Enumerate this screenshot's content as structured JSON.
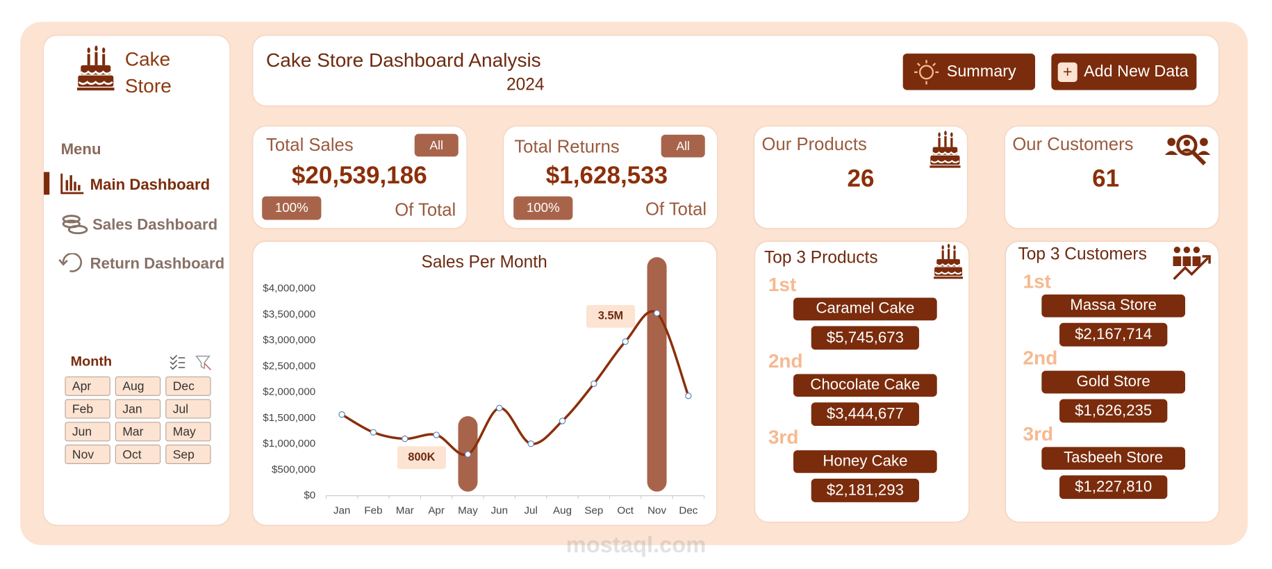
{
  "sidebar": {
    "brand": [
      "Cake",
      "Store"
    ],
    "menu_title": "Menu",
    "menu": [
      "Main Dashboard",
      "Sales Dashboard",
      "Return Dashboard"
    ],
    "month_filter": {
      "title": "Month",
      "items": [
        "Apr",
        "Aug",
        "Dec",
        "Feb",
        "Jan",
        "Jul",
        "Jun",
        "Mar",
        "May",
        "Nov",
        "Oct",
        "Sep"
      ]
    }
  },
  "header": {
    "title": "Cake Store Dashboard Analysis",
    "year": "2024",
    "buttons": [
      "Summary",
      "Add New Data"
    ]
  },
  "kpis": [
    {
      "title": "Total Sales",
      "filter": "All",
      "value": "$20,539,186",
      "share": "100%",
      "share_label": "Of Total"
    },
    {
      "title": "Total Returns",
      "filter": "All",
      "value": "$1,628,533",
      "share": "100%",
      "share_label": "Of Total"
    },
    {
      "title": "Our Products",
      "value": "26"
    },
    {
      "title": "Our Customers",
      "value": "61"
    }
  ],
  "top_products": {
    "title": "Top 3 Products",
    "items": [
      {
        "rank": "1st",
        "name": "Caramel Cake",
        "value": "$5,745,673"
      },
      {
        "rank": "2nd",
        "name": "Chocolate Cake",
        "value": "$3,444,677"
      },
      {
        "rank": "3rd",
        "name": "Honey Cake",
        "value": "$2,181,293"
      }
    ]
  },
  "top_customers": {
    "title": "Top 3 Customers",
    "items": [
      {
        "rank": "1st",
        "name": "Massa Store",
        "value": "$2,167,714"
      },
      {
        "rank": "2nd",
        "name": "Gold Store",
        "value": "$1,626,235"
      },
      {
        "rank": "3rd",
        "name": "Tasbeeh Store",
        "value": "$1,227,810"
      }
    ]
  },
  "watermark": "mostaql.com",
  "chart_data": {
    "type": "line",
    "title": "Sales Per Month",
    "categories": [
      "Jan",
      "Feb",
      "Mar",
      "Apr",
      "May",
      "Jun",
      "Jul",
      "Aug",
      "Sep",
      "Oct",
      "Nov",
      "Dec"
    ],
    "values": [
      1570000,
      1225000,
      1100000,
      1175000,
      800000,
      1695000,
      1005000,
      1445000,
      2165000,
      2980000,
      3530000,
      1930000
    ],
    "value_labels": [
      null,
      null,
      null,
      null,
      "800K",
      null,
      null,
      null,
      null,
      null,
      "3.5M",
      null
    ],
    "color": "#8b2f0a",
    "marker_color": "#5b82b8",
    "ylim": [
      0,
      4000000
    ],
    "yticks": [
      {
        "value": 0,
        "label": "$0"
      },
      {
        "value": 500000,
        "label": "$500,000"
      },
      {
        "value": 1000000,
        "label": "$1,000,000"
      },
      {
        "value": 1500000,
        "label": "$1,500,000"
      },
      {
        "value": 2000000,
        "label": "$2,000,000"
      },
      {
        "value": 2500000,
        "label": "$2,500,000"
      },
      {
        "value": 3000000,
        "label": "$3,000,000"
      },
      {
        "value": 3500000,
        "label": "$3,500,000"
      },
      {
        "value": 4000000,
        "label": "$4,000,000"
      }
    ],
    "grid": false
  }
}
